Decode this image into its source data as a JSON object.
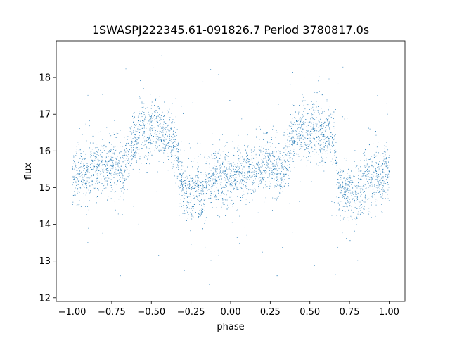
{
  "chart_data": {
    "type": "scatter",
    "title": "1SWASPJ222345.61-091826.7 Period 3780817.0s",
    "xlabel": "phase",
    "ylabel": "flux",
    "xlim": [
      -1.1,
      1.1
    ],
    "ylim": [
      11.9,
      19.0
    ],
    "xticks": [
      -1.0,
      -0.75,
      -0.5,
      -0.25,
      0.0,
      0.25,
      0.5,
      0.75,
      1.0
    ],
    "xtick_labels": [
      "−1.00",
      "−0.75",
      "−0.50",
      "−0.25",
      "0.00",
      "0.25",
      "0.50",
      "0.75",
      "1.00"
    ],
    "yticks": [
      12,
      13,
      14,
      15,
      16,
      17,
      18
    ],
    "ytick_labels": [
      "12",
      "13",
      "14",
      "15",
      "16",
      "17",
      "18"
    ],
    "grid": false,
    "legend": false,
    "series_color": "#1f77b4",
    "series": [
      {
        "description_points": "folded light curve, repeats over phase -1..1",
        "x": [
          -0.98,
          -0.95,
          -0.92,
          -0.88,
          -0.85,
          -0.82,
          -0.78,
          -0.75,
          -0.72,
          -0.68,
          -0.65,
          -0.62,
          -0.58,
          -0.55,
          -0.52,
          -0.48,
          -0.45,
          -0.42,
          -0.38,
          -0.35,
          -0.32,
          -0.28,
          -0.25,
          -0.22,
          -0.18,
          -0.15,
          -0.12,
          -0.08,
          -0.05,
          -0.02,
          0.02,
          0.05,
          0.08,
          0.12,
          0.15,
          0.18,
          0.22,
          0.25,
          0.28,
          0.32,
          0.35,
          0.38,
          0.42,
          0.45,
          0.48,
          0.52,
          0.55,
          0.58,
          0.62,
          0.65,
          0.68,
          0.72,
          0.75,
          0.78,
          0.82,
          0.85,
          0.88,
          0.92,
          0.95,
          0.98
        ],
        "y": [
          15.3,
          15.4,
          15.2,
          15.5,
          15.4,
          15.6,
          15.5,
          15.7,
          15.6,
          15.4,
          15.8,
          16.2,
          16.5,
          16.7,
          16.4,
          16.8,
          16.6,
          16.3,
          16.5,
          16.2,
          15.1,
          14.8,
          14.9,
          15.0,
          14.9,
          15.1,
          15.2,
          15.3,
          15.2,
          15.4,
          15.3,
          15.4,
          15.2,
          15.5,
          15.4,
          15.6,
          15.5,
          15.7,
          15.6,
          15.4,
          15.8,
          16.2,
          16.5,
          16.7,
          16.4,
          16.8,
          16.6,
          16.3,
          16.5,
          16.2,
          15.1,
          14.8,
          14.9,
          15.0,
          14.9,
          15.1,
          15.2,
          15.3,
          15.2,
          15.4
        ]
      }
    ]
  }
}
